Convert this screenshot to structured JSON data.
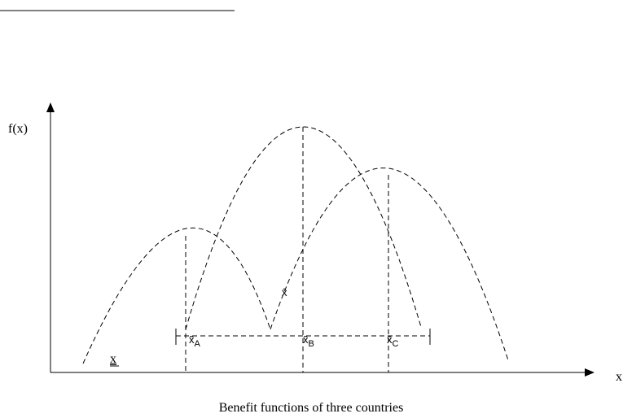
{
  "axes": {
    "y_label": "f(x)",
    "x_label": "x"
  },
  "labels": [
    {
      "text": "x̃",
      "sub": "A"
    },
    {
      "text": "x̃",
      "sub": "B"
    },
    {
      "text": "x̃",
      "sub": "C"
    },
    {
      "text": "x̂"
    },
    {
      "text": "x"
    }
  ],
  "caption": "Benefit functions of three countries"
}
